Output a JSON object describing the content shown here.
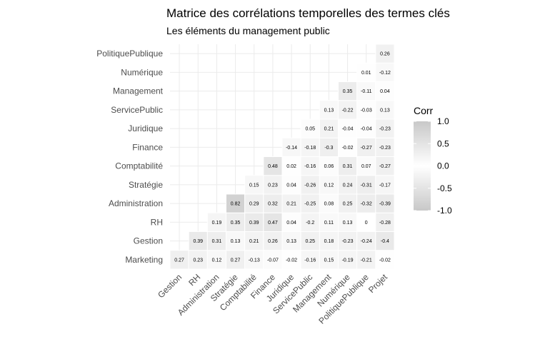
{
  "chart_data": {
    "type": "heatmap",
    "title": "Matrice des corrélations temporelles des termes clés",
    "subtitle": "Les éléments du management public",
    "x_categories": [
      "Gestion",
      "RH",
      "Administration",
      "Stratégie",
      "Comptabilité",
      "Finance",
      "Juridique",
      "ServicePublic",
      "Management",
      "Numérique",
      "PolitiquePublique",
      "Projet"
    ],
    "y_categories": [
      "Marketing",
      "Gestion",
      "RH",
      "Administration",
      "Stratégie",
      "Comptabilité",
      "Finance",
      "Juridique",
      "ServicePublic",
      "Management",
      "Numérique",
      "PolitiquePublique"
    ],
    "cells": [
      {
        "row": "Marketing",
        "values": [
          "0.27",
          "0.23",
          "0.12",
          "0.27",
          "-0.13",
          "-0.07",
          "-0.02",
          "-0.16",
          "0.15",
          "-0.19",
          "-0.21",
          "-0.02"
        ]
      },
      {
        "row": "Gestion",
        "values": [
          null,
          "0.39",
          "0.31",
          "0.13",
          "0.21",
          "0.26",
          "0.13",
          "0.25",
          "0.18",
          "-0.23",
          "-0.24",
          "-0.4"
        ]
      },
      {
        "row": "RH",
        "values": [
          null,
          null,
          "0.19",
          "0.35",
          "0.39",
          "0.47",
          "0.04",
          "-0.2",
          "0.11",
          "0.13",
          "0",
          "-0.28"
        ]
      },
      {
        "row": "Administration",
        "values": [
          null,
          null,
          null,
          "0.82",
          "0.29",
          "0.32",
          "0.21",
          "-0.25",
          "0.08",
          "0.25",
          "-0.32",
          "-0.39"
        ]
      },
      {
        "row": "Stratégie",
        "values": [
          null,
          null,
          null,
          null,
          "0.15",
          "0.23",
          "0.04",
          "-0.26",
          "0.12",
          "0.24",
          "-0.31",
          "-0.17"
        ]
      },
      {
        "row": "Comptabilité",
        "values": [
          null,
          null,
          null,
          null,
          null,
          "0.48",
          "0.02",
          "-0.16",
          "0.06",
          "0.31",
          "0.07",
          "-0.27"
        ]
      },
      {
        "row": "Finance",
        "values": [
          null,
          null,
          null,
          null,
          null,
          null,
          "-0.14",
          "-0.18",
          "-0.3",
          "-0.02",
          "-0.27",
          "-0.23"
        ]
      },
      {
        "row": "Juridique",
        "values": [
          null,
          null,
          null,
          null,
          null,
          null,
          null,
          "0.05",
          "0.21",
          "-0.04",
          "-0.04",
          "-0.23"
        ]
      },
      {
        "row": "ServicePublic",
        "values": [
          null,
          null,
          null,
          null,
          null,
          null,
          null,
          null,
          "0.13",
          "-0.22",
          "-0.03",
          "0.13"
        ]
      },
      {
        "row": "Management",
        "values": [
          null,
          null,
          null,
          null,
          null,
          null,
          null,
          null,
          null,
          "0.35",
          "-0.11",
          "0.04"
        ]
      },
      {
        "row": "Numérique",
        "values": [
          null,
          null,
          null,
          null,
          null,
          null,
          null,
          null,
          null,
          null,
          "0.01",
          "-0.12"
        ]
      },
      {
        "row": "PolitiquePublique",
        "values": [
          null,
          null,
          null,
          null,
          null,
          null,
          null,
          null,
          null,
          null,
          null,
          "0.26"
        ]
      }
    ],
    "legend": {
      "title": "Corr",
      "ticks": [
        "1.0",
        "0.5",
        "0.0",
        "-0.5",
        "-1.0"
      ],
      "range": [
        -1,
        1
      ],
      "placement": "right"
    },
    "colors": {
      "low": "#c8c8c8",
      "mid": "#ffffff",
      "high": "#c8c8c8"
    }
  }
}
